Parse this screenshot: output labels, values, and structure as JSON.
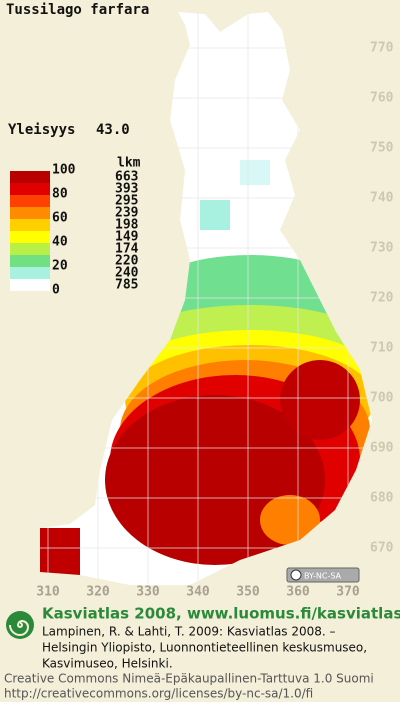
{
  "title": "Tussilago farfara",
  "frequency": {
    "label": "Yleisyys",
    "value": "43.0"
  },
  "legend": {
    "count_header": "lkm",
    "scale_labels": [
      100,
      80,
      60,
      40,
      20,
      0
    ],
    "counts": [
      663,
      393,
      295,
      239,
      198,
      149,
      174,
      220,
      240,
      785
    ]
  },
  "grid": {
    "north_labels": [
      770,
      760,
      750,
      740,
      730,
      720,
      710,
      700,
      690,
      680,
      670
    ],
    "east_labels": [
      310,
      320,
      330,
      340,
      350,
      360,
      370
    ]
  },
  "badge": "BY-NC-SA",
  "footer": {
    "heading": "Kasviatlas 2008, www.luomus.fi/kasviatlas",
    "citation": [
      "Lampinen, R. & Lahti, T. 2009: Kasviatlas 2008. –",
      "Helsingin Yliopisto, Luonnontieteellinen keskusmuseo,",
      "Kasvimuseo, Helsinki."
    ],
    "license": [
      "Creative Commons Nimeä-Epäkaupallinen-Tarttuva 1.0 Suomi",
      "http://creativecommons.org/licenses/by-nc-sa/1.0/fi"
    ]
  }
}
